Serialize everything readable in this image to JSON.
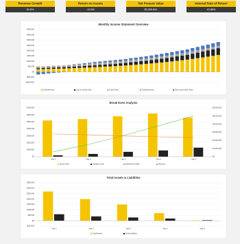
{
  "kpis": [
    {
      "label": "Revenue Growth",
      "value": "60.8%"
    },
    {
      "label": "Return on Assets",
      "value": "-19.8%"
    },
    {
      "label": "Net Present Value",
      "value": "$5,355,661"
    },
    {
      "label": "Internal Rate of Return",
      "value": "43.88%"
    }
  ],
  "chart_data": [
    {
      "type": "stacked_bar",
      "title": "Monthly Income Statement Overview",
      "categories": [
        null,
        null,
        null,
        null,
        null,
        null,
        null,
        null,
        null,
        null,
        null,
        null,
        null,
        null,
        null,
        null,
        null,
        null,
        null,
        null,
        null,
        null,
        null,
        null,
        null,
        null,
        null,
        null,
        null,
        null,
        null,
        null,
        null,
        null,
        null,
        null
      ],
      "series": [
        {
          "name": "Total Revenue",
          "color": "#f5c400",
          "values": [
            25000,
            26000,
            28000,
            29000,
            31000,
            32000,
            34000,
            36000,
            38000,
            40000,
            42000,
            45000,
            47000,
            50000,
            52000,
            55000,
            58000,
            61000,
            65000,
            68000,
            72000,
            76000,
            80000,
            85000,
            89000,
            94000,
            99000,
            105000,
            110000,
            116000,
            123000,
            130000,
            137000,
            144000,
            152000,
            160000
          ]
        },
        {
          "name": "Cost of Goods Sold",
          "color": "#222222",
          "values": [
            10000,
            10000,
            11000,
            12000,
            12000,
            13000,
            14000,
            14000,
            15000,
            16000,
            17000,
            18000,
            19000,
            20000,
            21000,
            22000,
            23000,
            24000,
            26000,
            27000,
            29000,
            30000,
            32000,
            34000,
            36000,
            38000,
            40000,
            42000,
            44000,
            46000,
            49000,
            52000,
            55000,
            58000,
            61000,
            64000
          ]
        },
        {
          "name": "Gross Profit",
          "color": "#a6a6a6",
          "values": [
            15000,
            15000,
            15000,
            15000,
            15000,
            15000,
            16000,
            16000,
            16000,
            16000,
            16000,
            16000,
            17000,
            17000,
            17000,
            17000,
            17000,
            17000,
            18000,
            18000,
            18000,
            18000,
            18000,
            18000,
            19000,
            19000,
            19000,
            19000,
            19000,
            19000,
            20000,
            20000,
            20000,
            20000,
            20000,
            20000
          ]
        },
        {
          "name": "Total Expenses",
          "color": "#f08a4b",
          "values": [
            2000,
            2000,
            2000,
            2000,
            2000,
            2000,
            2000,
            2000,
            2000,
            2000,
            2000,
            2000,
            2000,
            2000,
            2000,
            2000,
            2000,
            2000,
            2000,
            2000,
            2000,
            2000,
            2000,
            2000,
            2000,
            2000,
            2000,
            2000,
            2000,
            2000,
            2000,
            2000,
            2000,
            2000,
            2000,
            2000
          ]
        },
        {
          "name": "Net Income after Taxes",
          "color": "#4a78c0",
          "values": [
            -25000,
            -20000,
            -15000,
            -10000,
            -6000,
            -3000,
            1000,
            4000,
            6000,
            8000,
            10000,
            12000,
            13000,
            14000,
            15000,
            16000,
            17000,
            18000,
            19000,
            20000,
            21000,
            22000,
            23000,
            24000,
            25000,
            26000,
            27000,
            28000,
            29000,
            30000,
            31000,
            32000,
            33000,
            34000,
            35000,
            36000
          ]
        }
      ],
      "ylim": [
        -100000,
        400000
      ],
      "yticks": [
        {
          "value": 400000,
          "label": "$400,000"
        },
        {
          "value": 350000,
          "label": "$350,000"
        },
        {
          "value": 300000,
          "label": "$300,000"
        },
        {
          "value": 250000,
          "label": "$250,000"
        },
        {
          "value": 200000,
          "label": "$200,000"
        },
        {
          "value": 150000,
          "label": "$150,000"
        },
        {
          "value": 100000,
          "label": "$100,000"
        },
        {
          "value": 50000,
          "label": "$50,000"
        },
        {
          "value": 0,
          "label": "$0"
        },
        {
          "value": -50000,
          "label": "($50,000)"
        },
        {
          "value": -100000,
          "label": "($100,000)"
        }
      ],
      "grid": true
    },
    {
      "type": "bar_line",
      "title": "Break Even Analysis",
      "categories": [
        "Year 1",
        "Year 2",
        "Year 3",
        "Year 4",
        "Year 5"
      ],
      "series": [
        {
          "name": "Fixed Costs",
          "color": "#f5c400",
          "type": "bar",
          "values": [
            520000,
            540000,
            580000,
            620000,
            560000
          ]
        },
        {
          "name": "Variable Costs",
          "color": "#222222",
          "type": "bar",
          "values": [
            20000,
            40000,
            70000,
            90000,
            130000
          ]
        },
        {
          "name": "Break Even Sales",
          "color": "#f08a4b",
          "type": "line",
          "axis": "y2",
          "values": [
            2800000,
            2700000,
            2550000,
            2450000,
            2350000
          ]
        },
        {
          "name": "Revenue",
          "color": "#6cbf4a",
          "type": "line",
          "axis": "y2",
          "values": [
            600000,
            1500000,
            2600000,
            3800000,
            5000000
          ]
        }
      ],
      "ylim": [
        0,
        700000
      ],
      "yticks": [
        {
          "value": 700000,
          "label": "$700,000"
        },
        {
          "value": 600000,
          "label": "$600,000"
        },
        {
          "value": 500000,
          "label": "$500,000"
        },
        {
          "value": 400000,
          "label": "$400,000"
        },
        {
          "value": 300000,
          "label": "$300,000"
        },
        {
          "value": 200000,
          "label": "$200,000"
        },
        {
          "value": 100000,
          "label": "$100,000"
        },
        {
          "value": 0,
          "label": "$0"
        }
      ],
      "y2lim": [
        0,
        6000000
      ],
      "y2ticks": [
        {
          "value": 6000000,
          "label": "$6,000,000"
        },
        {
          "value": 5000000,
          "label": "$5,000,000"
        },
        {
          "value": 4000000,
          "label": "$4,000,000"
        },
        {
          "value": 3000000,
          "label": "$3,000,000"
        },
        {
          "value": 2000000,
          "label": "$2,000,000"
        },
        {
          "value": 1000000,
          "label": "$1,000,000"
        },
        {
          "value": 0,
          "label": "$0"
        }
      ],
      "grid": true
    },
    {
      "type": "bar_line",
      "title": "Total Assets & Liabilities",
      "categories": [
        "Year 1",
        "Year 2",
        "Year 3",
        "Year 4",
        "Year 5"
      ],
      "series": [
        {
          "name": "Total Assets",
          "color": "#f5c400",
          "type": "bar",
          "values": [
            270000,
            200000,
            150000,
            70000,
            3000
          ]
        },
        {
          "name": "Total Liabilities",
          "color": "#222222",
          "type": "bar",
          "values": [
            60000,
            40000,
            30000,
            20000,
            5000
          ]
        }
      ],
      "ylim": [
        -50000,
        350000
      ],
      "yticks": [
        {
          "value": 350000,
          "label": "$350,000"
        },
        {
          "value": 300000,
          "label": "$300,000"
        },
        {
          "value": 250000,
          "label": "$250,000"
        },
        {
          "value": 200000,
          "label": "$200,000"
        },
        {
          "value": 150000,
          "label": "$150,000"
        },
        {
          "value": 100000,
          "label": "$100,000"
        },
        {
          "value": 50000,
          "label": "$50,000"
        },
        {
          "value": 0,
          "label": "$0"
        },
        {
          "value": -50000,
          "label": "($50,000)"
        }
      ],
      "grid": true
    }
  ]
}
